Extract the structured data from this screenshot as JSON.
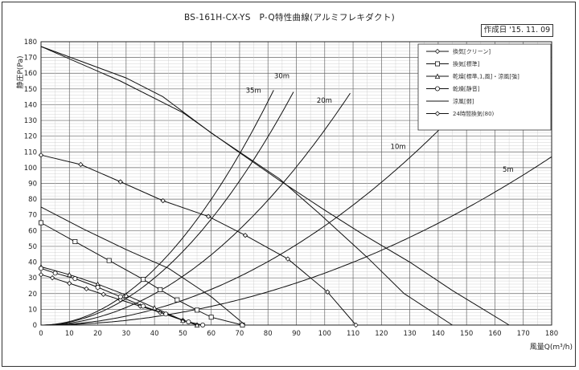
{
  "header": {
    "title": "BS-161H-CX-YS　P-Q特性曲線(アルミフレキダクト)",
    "date": "作成日 '15. 11. 09"
  },
  "chart_data": {
    "type": "line",
    "title": "BS-161H-CX-YS　P-Q特性曲線(アルミフレキダクト)",
    "xlabel": "風量Q(m³/h)",
    "ylabel": "静圧P(Pa)",
    "xlim": [
      0,
      180
    ],
    "ylim": [
      0,
      180
    ],
    "xticks": [
      0,
      10,
      20,
      30,
      40,
      50,
      60,
      70,
      80,
      90,
      100,
      110,
      120,
      130,
      140,
      150,
      160,
      170,
      180
    ],
    "yticks": [
      0,
      10,
      20,
      30,
      40,
      50,
      60,
      70,
      80,
      90,
      100,
      110,
      120,
      130,
      140,
      150,
      160,
      170,
      180
    ],
    "grid": true,
    "legend_position": "top-right",
    "series": [
      {
        "name": "換気[クリーン]",
        "marker": "diamond",
        "x": [
          0,
          4,
          10,
          16,
          22,
          28,
          35,
          42,
          50,
          55
        ],
        "y": [
          32,
          30,
          26.5,
          23,
          19.5,
          16,
          12,
          8,
          3,
          0
        ]
      },
      {
        "name": "換気[標準]",
        "marker": "square",
        "x": [
          0,
          12,
          24,
          36,
          42,
          48,
          55,
          60,
          71
        ],
        "y": [
          65,
          53,
          41,
          29,
          22.5,
          16,
          9.5,
          5,
          0
        ]
      },
      {
        "name": "乾燥[標準,1,風]・涼風[強]",
        "marker": "triangle",
        "x": [
          0,
          10,
          20,
          30,
          40,
          50,
          55
        ],
        "y": [
          37,
          32,
          26,
          19,
          11,
          3,
          0
        ]
      },
      {
        "name": "乾燥[静音]",
        "marker": "circle",
        "x": [
          0,
          5,
          12,
          20,
          28,
          36,
          44,
          52,
          57
        ],
        "y": [
          36,
          33,
          29.5,
          24,
          18,
          12,
          7,
          2,
          0
        ]
      },
      {
        "name": "涼風[弱]",
        "marker": "none",
        "x": [
          0,
          15,
          30,
          45,
          60,
          72
        ],
        "y": [
          75,
          61,
          48,
          36,
          18,
          0
        ]
      },
      {
        "name": "24時間換気(80)",
        "marker": "diamond",
        "x": [
          0,
          14,
          28,
          43,
          59,
          72,
          87,
          101,
          111
        ],
        "y": [
          108,
          102,
          91,
          79,
          69,
          57,
          42,
          21,
          0
        ]
      },
      {
        "name": "",
        "marker": "none",
        "x": [
          0,
          30,
          43,
          60,
          84,
          98,
          115,
          128,
          145
        ],
        "y": [
          177,
          157,
          145,
          122,
          93,
          71,
          43,
          20,
          0
        ]
      },
      {
        "name": "",
        "marker": "none",
        "x": [
          0,
          28,
          50,
          68,
          84,
          100,
          114,
          130,
          145,
          165
        ],
        "y": [
          177,
          155,
          135,
          112,
          92,
          73,
          57,
          40,
          22,
          0
        ]
      }
    ],
    "duct_curves": [
      {
        "label": "35m",
        "k": 0.0222
      },
      {
        "label": "30m",
        "k": 0.0187
      },
      {
        "label": "20m",
        "k": 0.0124
      },
      {
        "label": "10m",
        "k": 0.0063
      },
      {
        "label": "5m",
        "k": 0.0033
      }
    ]
  },
  "legend": {
    "items": [
      {
        "label": "換気[クリーン]",
        "marker": "diamond"
      },
      {
        "label": "換気[標準]",
        "marker": "square"
      },
      {
        "label": "乾燥[標準,1,風]・涼風[強]",
        "marker": "triangle"
      },
      {
        "label": "乾燥[静音]",
        "marker": "circle"
      },
      {
        "label": "涼風[弱]",
        "marker": "none"
      },
      {
        "label": "24時間換気(80)",
        "marker": "diamond"
      }
    ]
  }
}
